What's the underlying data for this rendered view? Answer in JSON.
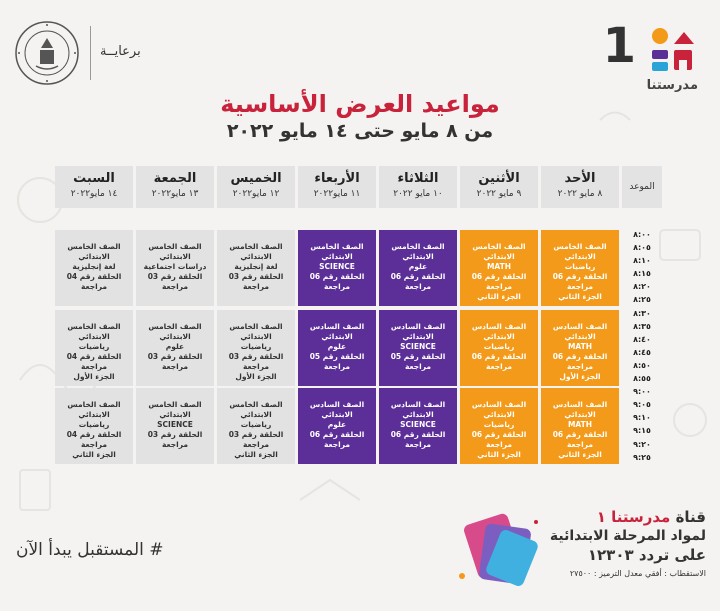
{
  "brand": {
    "number": "1",
    "name": "مدرستنا",
    "sponsor_label": "برعايــة",
    "ministry_seal": "MINISTRY OF EDUCATION AND TECHNICAL EDUCATION"
  },
  "title": "مواعيد العرض الأساسية",
  "subtitle": "من ٨ مايو حتى ١٤ مايو ٢٠٢٢",
  "time_header": "الموعد",
  "days": [
    {
      "day": "الأحد",
      "date": "٨ مايو ٢٠٢٢"
    },
    {
      "day": "الأثنين",
      "date": "٩ مايو ٢٠٢٢"
    },
    {
      "day": "الثلاثاء",
      "date": "١٠ مايو ٢٠٢٢"
    },
    {
      "day": "الأربعاء",
      "date": "١١ مايو٢٠٢٢"
    },
    {
      "day": "الخميس",
      "date": "١٢ مايو٢٠٢٢"
    },
    {
      "day": "الجمعة",
      "date": "١٣ مايو٢٠٢٢"
    },
    {
      "day": "السبت",
      "date": "١٤ مايو٢٠٢٢"
    }
  ],
  "times": [
    "٨:٠٠",
    "٨:٠٥",
    "٨:١٠",
    "٨:١٥",
    "٨:٢٠",
    "٨:٢٥",
    "٨:٣٠",
    "٨:٣٥",
    "٨:٤٠",
    "٨:٤٥",
    "٨:٥٠",
    "٨:٥٥",
    "٩:٠٠",
    "٩:٠٥",
    "٩:١٠",
    "٩:١٥",
    "٩:٢٠",
    "٩:٢٥"
  ],
  "slots": [
    [
      [
        "الصف الخامس الابتدائي",
        "رياضيات",
        "الحلقة رقم 06 مراجعة",
        "الجزء الثاني"
      ],
      [
        "الصف الخامس الابتدائي",
        "MATH",
        "الحلقة رقم 06 مراجعة",
        "الجزء الثاني"
      ],
      [
        "الصف الخامس الابتدائي",
        "علوم",
        "الحلقة رقم 06 مراجعة"
      ],
      [
        "الصف الخامس الابتدائي",
        "SCIENCE",
        "الحلقة رقم 06 مراجعة"
      ],
      [
        "الصف الخامس الابتدائي",
        "لغة إنجليزية",
        "الحلقة رقم 03 مراجعة"
      ],
      [
        "الصف الخامس الابتدائي",
        "دراسات اجتماعية",
        "الحلقة رقم 03 مراجعة"
      ],
      [
        "الصف الخامس الابتدائي",
        "لغة إنجليزية",
        "الحلقة رقم 04 مراجعة"
      ]
    ],
    [
      [
        "الصف السادس الابتدائي",
        "MATH",
        "الحلقة رقم 06 مراجعة",
        "الجزء الأول"
      ],
      [
        "الصف السادس الابتدائي",
        "رياضيات",
        "الحلقة رقم 06 مراجعة"
      ],
      [
        "الصف السادس الابتدائي",
        "SCIENCE",
        "الحلقة رقم 05 مراجعة"
      ],
      [
        "الصف السادس الابتدائي",
        "علوم",
        "الحلقة رقم 05 مراجعة"
      ],
      [
        "الصف الخامس الابتدائي",
        "رياضيات",
        "الحلقة رقم 03 مراجعة",
        "الجزء الأول"
      ],
      [
        "الصف الخامس الابتدائي",
        "علوم",
        "الحلقة رقم 03 مراجعة"
      ],
      [
        "الصف الخامس الابتدائي",
        "رياضيات",
        "الحلقة رقم 04 مراجعة",
        "الجزء الأول"
      ]
    ],
    [
      [
        "الصف السادس الابتدائي",
        "MATH",
        "الحلقة رقم 06 مراجعة",
        "الجزء الثاني"
      ],
      [
        "الصف السادس الابتدائي",
        "رياضيات",
        "الحلقة رقم 06 مراجعة",
        "الجزء الثاني"
      ],
      [
        "الصف السادس الابتدائي",
        "SCIENCE",
        "الحلقة رقم 06 مراجعة"
      ],
      [
        "الصف السادس الابتدائي",
        "علوم",
        "الحلقة رقم 06 مراجعة"
      ],
      [
        "الصف الخامس الابتدائي",
        "رياضيات",
        "الحلقة رقم 03 مراجعة",
        "الجزء الثاني"
      ],
      [
        "الصف الخامس الابتدائي",
        "SCIENCE",
        "الحلقة رقم 03 مراجعة"
      ],
      [
        "الصف الخامس الابتدائي",
        "رياضيات",
        "الحلقة رقم 04 مراجعة",
        "الجزء الثاني"
      ]
    ]
  ],
  "column_colors": [
    "#f39a1a",
    "#f39a1a",
    "#5b2e98",
    "#5b2e98",
    "#e2e2e2",
    "#e2e2e2",
    "#e2e2e2"
  ],
  "footer": {
    "hashtag": "# المستقبل يبدأ الآن",
    "channel_prefix": "قناة",
    "channel_name": "مدرستنا ١",
    "channel_desc": "لمواد المرحلة الابتدائية",
    "frequency": "على تردد ١٢٣٠٣",
    "reception": "الاستقطاب : أفقي معدل الترميز : ٢٧٥٠٠"
  }
}
